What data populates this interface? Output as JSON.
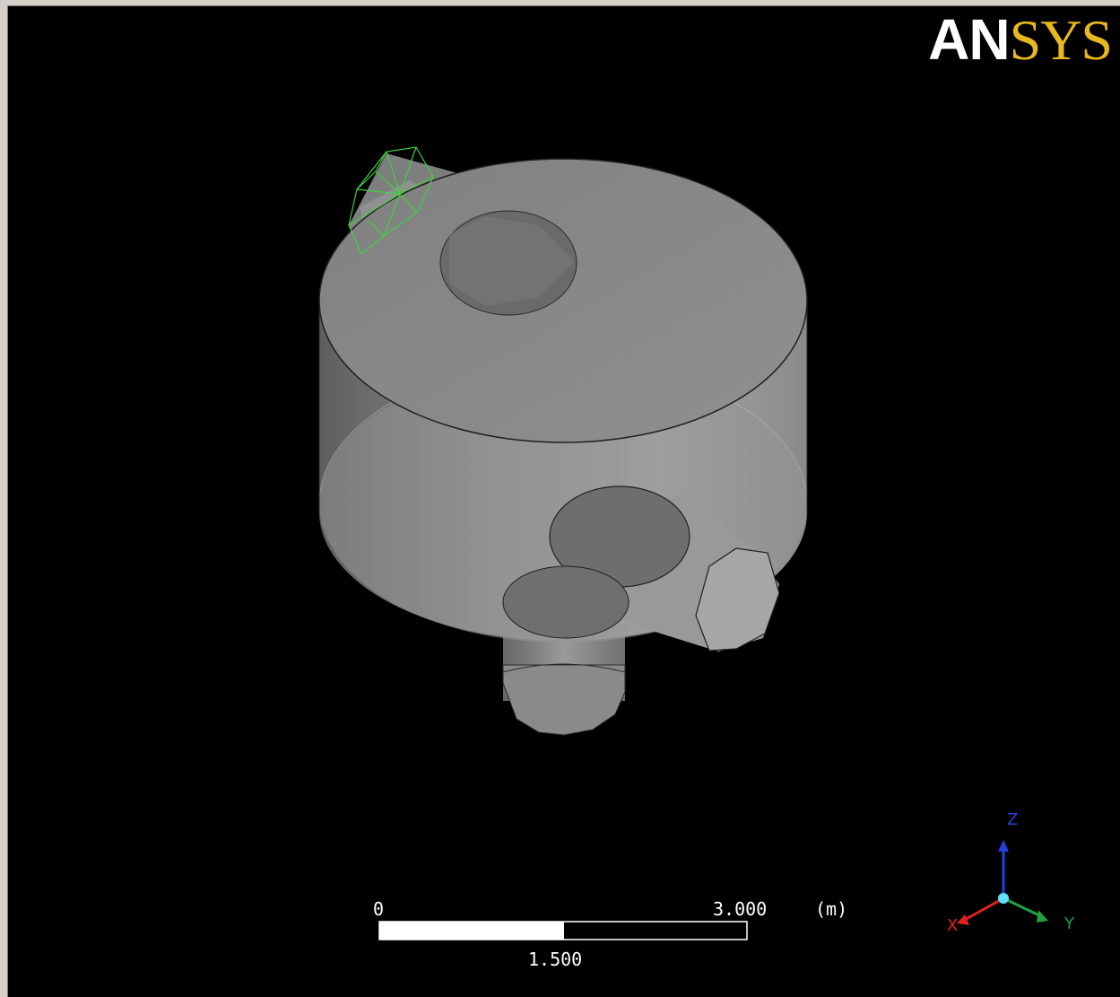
{
  "logo": {
    "part1": "AN",
    "part2": "SYS"
  },
  "colors": {
    "background": "#000000",
    "body": "#8c8c8c",
    "logo_accent": "#e8b81f",
    "selection": "#3fd13f",
    "x_axis": "#e02020",
    "y_axis": "#20a040",
    "z_axis": "#2040e0"
  },
  "scale_bar": {
    "min_label": "0",
    "max_label": "3.000",
    "unit": "(m)",
    "mid_label": "1.500"
  },
  "triad": {
    "z": "Z",
    "x": "X",
    "y": "Y"
  }
}
